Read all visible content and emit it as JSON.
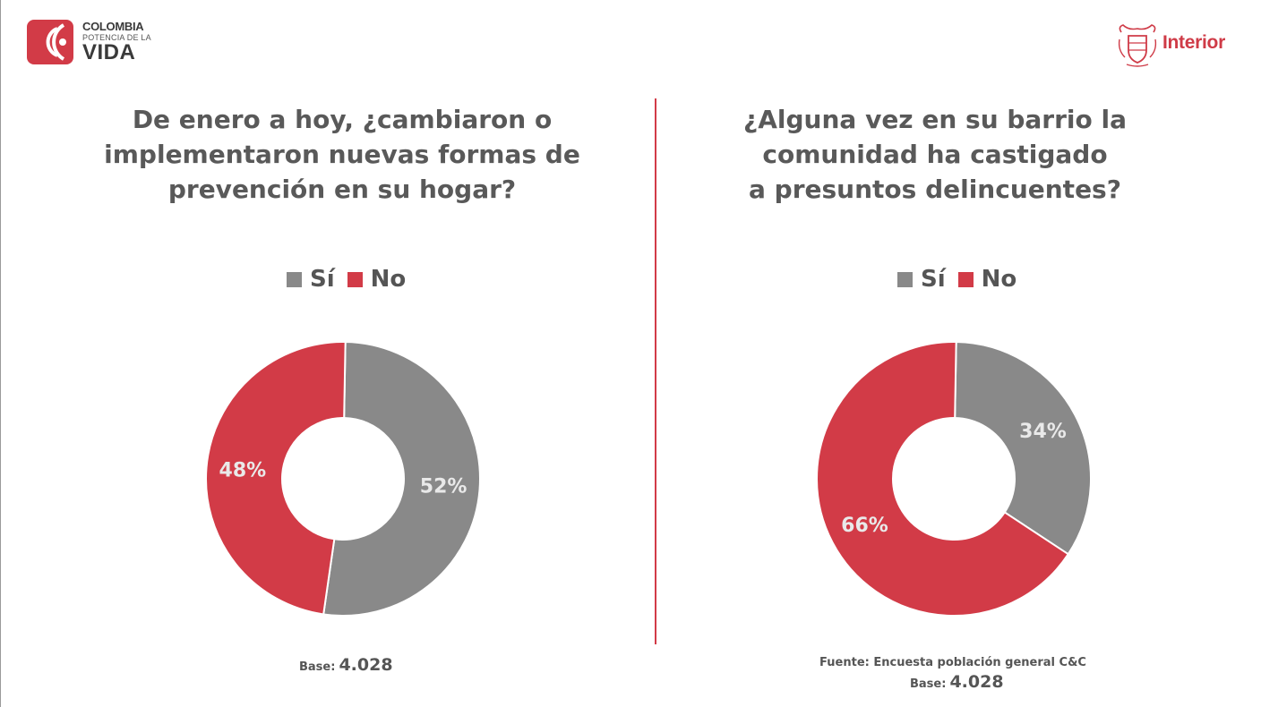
{
  "colors": {
    "si": "#898989",
    "no": "#d23b47",
    "text": "#595959",
    "accent": "#d23b47"
  },
  "brand": {
    "line1": "COLOMBIA",
    "line2": "POTENCIA DE LA",
    "line3": "VIDA"
  },
  "ministry": {
    "name": "Interior"
  },
  "left": {
    "title_lines": [
      "De enero a hoy, ¿cambiaron o",
      "implementaron nuevas formas de",
      "prevención en su hogar?"
    ],
    "legend": [
      "Sí",
      "No"
    ],
    "base_label": "Base:",
    "base_value": "4.028"
  },
  "right": {
    "title_lines": [
      "¿Alguna vez en su barrio la",
      "comunidad ha castigado",
      "a presuntos delincuentes?"
    ],
    "legend": [
      "Sí",
      "No"
    ],
    "source": "Fuente: Encuesta población general C&C",
    "base_label": "Base:",
    "base_value": "4.028"
  },
  "chart_data": [
    {
      "type": "pie",
      "title": "De enero a hoy, ¿cambiaron o implementaron nuevas formas de prevención en su hogar?",
      "categories": [
        "Sí",
        "No"
      ],
      "values": [
        52,
        48
      ],
      "labels": [
        "52%",
        "48%"
      ],
      "colors": [
        "#898989",
        "#d23b47"
      ],
      "donut": true,
      "legend": "top"
    },
    {
      "type": "pie",
      "title": "¿Alguna vez en su barrio la comunidad ha castigado a presuntos delincuentes?",
      "categories": [
        "Sí",
        "No"
      ],
      "values": [
        34,
        66
      ],
      "labels": [
        "34%",
        "66%"
      ],
      "colors": [
        "#898989",
        "#d23b47"
      ],
      "donut": true,
      "legend": "top"
    }
  ]
}
